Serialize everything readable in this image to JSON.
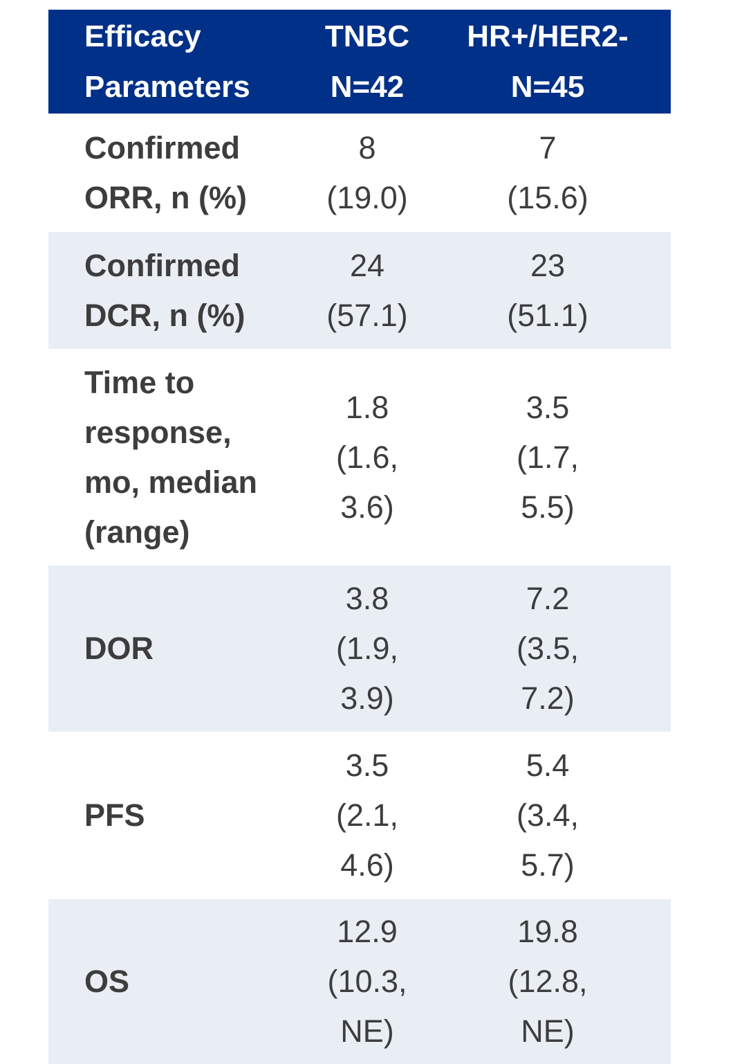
{
  "table": {
    "header": {
      "param": "Efficacy\nParameters",
      "tnbc": "TNBC\nN=42",
      "hr": "HR+/HER2-\nN=45"
    },
    "rows": [
      {
        "param": "Confirmed\nORR, n (%)",
        "tnbc": "8\n(19.0)",
        "hr": "7\n(15.6)"
      },
      {
        "param": "Confirmed\nDCR, n (%)",
        "tnbc": "24\n(57.1)",
        "hr": "23\n(51.1)"
      },
      {
        "param": "Time to\nresponse,\nmo, median\n(range)",
        "tnbc": "1.8\n(1.6,\n3.6)",
        "hr": "3.5\n(1.7,\n5.5)"
      },
      {
        "param": "DOR",
        "tnbc": "3.8\n(1.9,\n3.9)",
        "hr": "7.2\n(3.5,\n7.2)"
      },
      {
        "param": "PFS",
        "tnbc": "3.5\n(2.1,\n4.6)",
        "hr": "5.4\n(3.4,\n5.7)"
      },
      {
        "param": "OS",
        "tnbc": "12.9\n(10.3,\nNE)",
        "hr": "19.8\n(12.8,\nNE)"
      }
    ]
  },
  "colors": {
    "header_bg": "#003087",
    "shaded_row_bg": "#e9eef5",
    "text": "#3d3d3d"
  }
}
